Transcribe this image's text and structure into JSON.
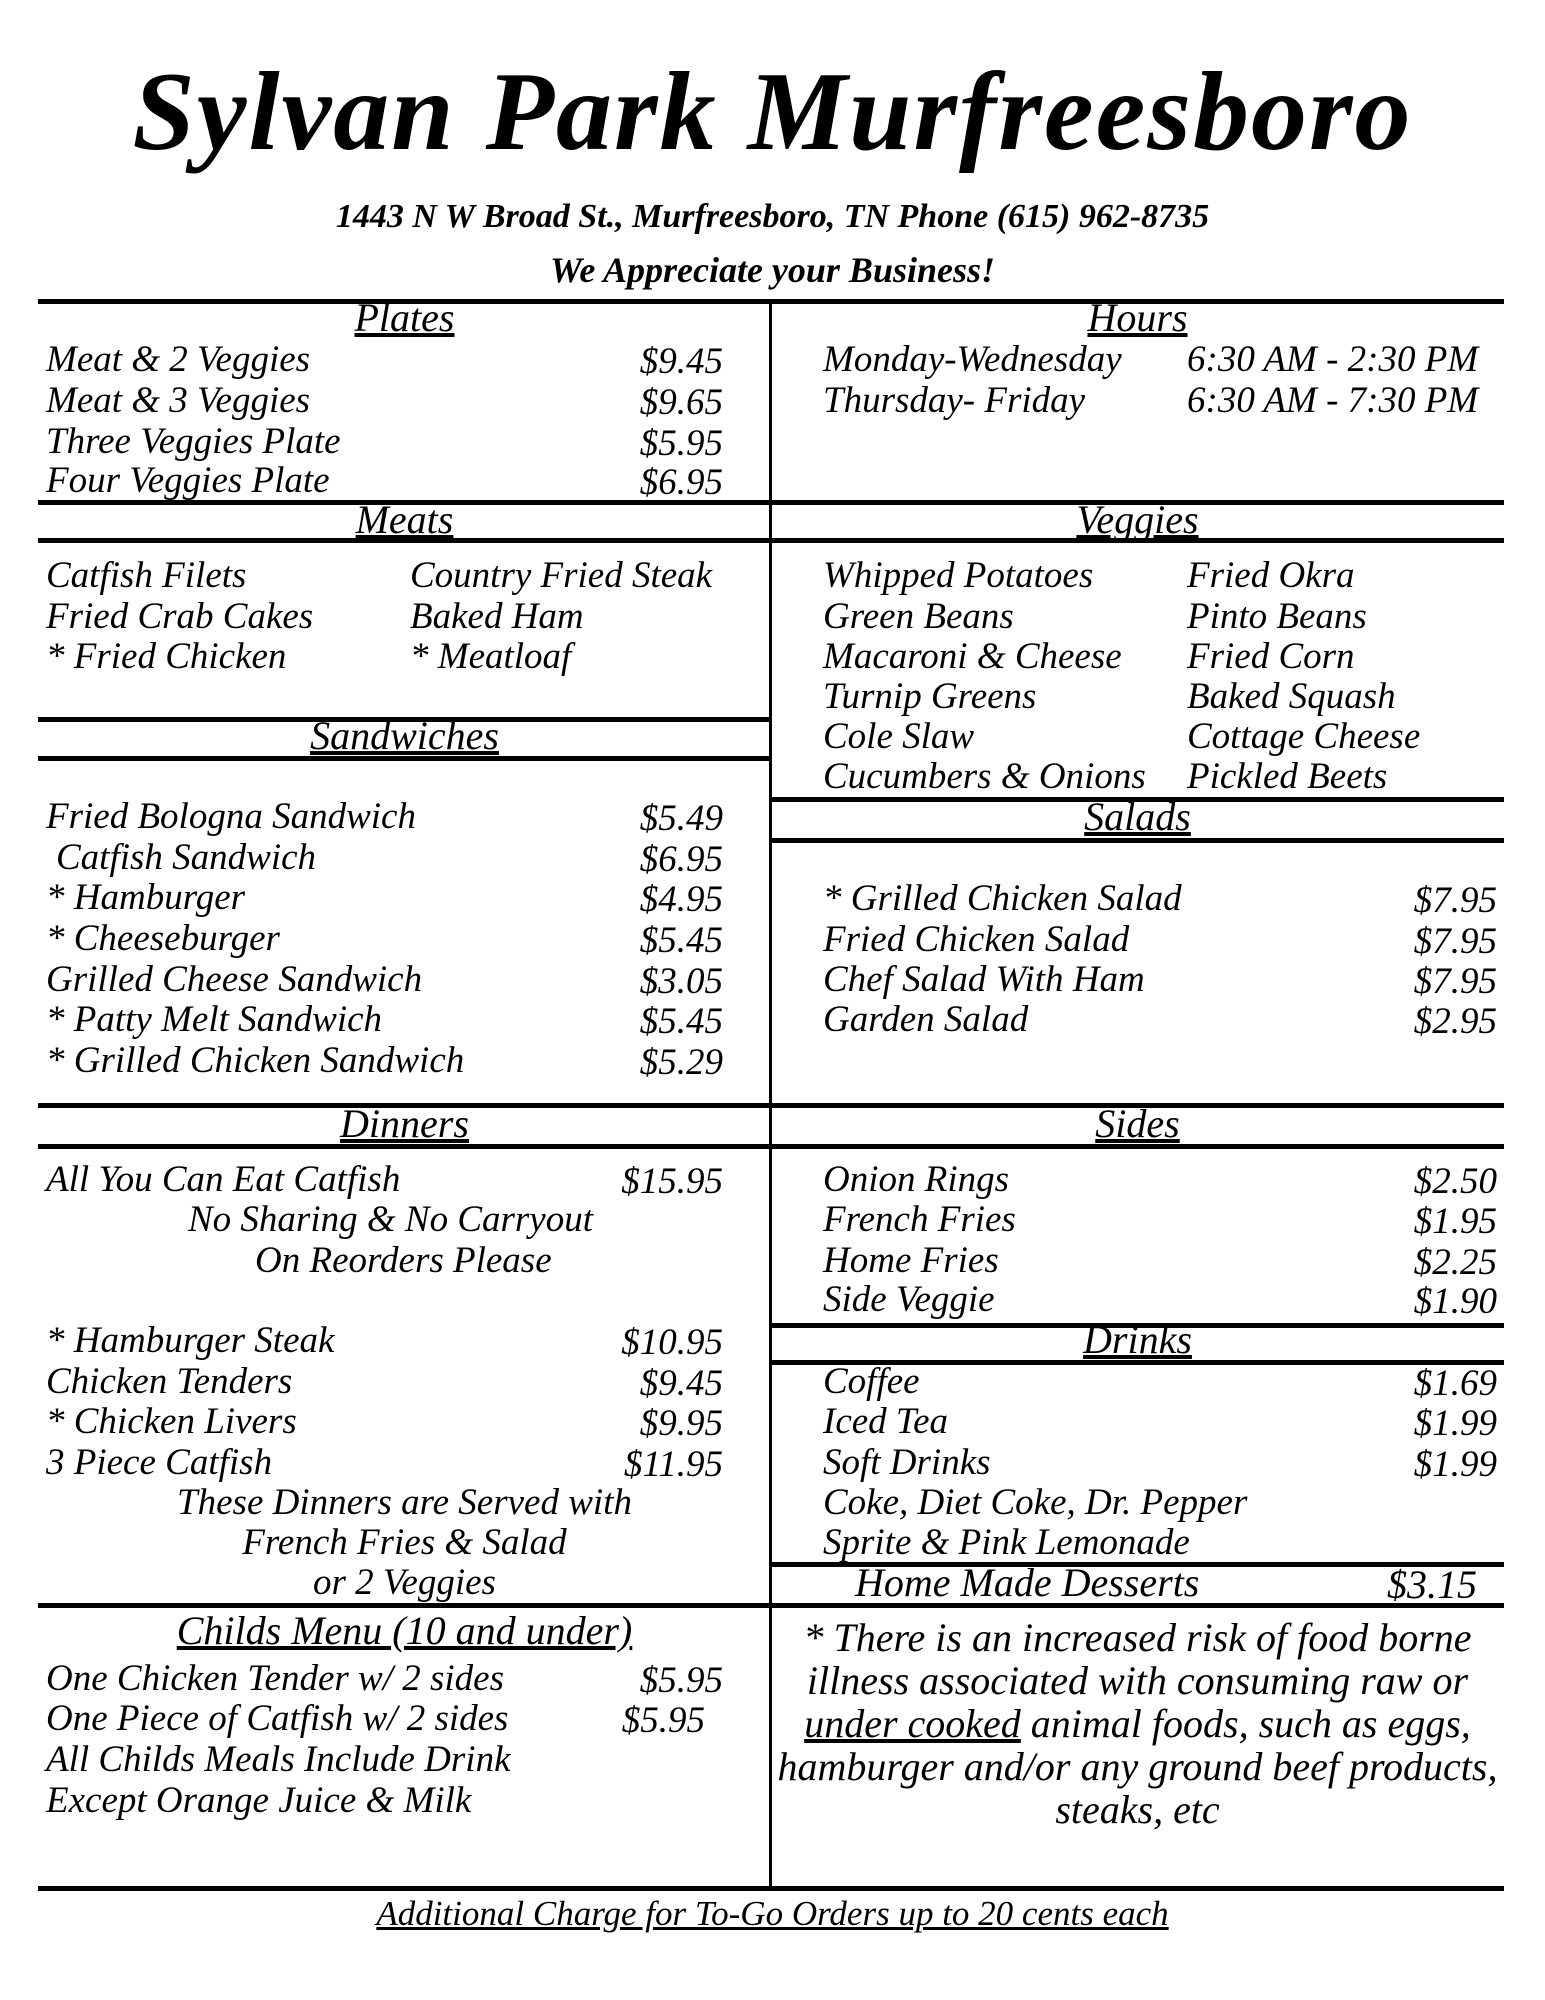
{
  "header": {
    "title": "Sylvan Park Murfreesboro",
    "address": "1443 N W Broad St., Murfreesboro, TN  Phone (615) 962-8735",
    "tagline": "We Appreciate your Business!"
  },
  "plates": {
    "title": "Plates",
    "items": [
      {
        "name": "Meat & 2 Veggies",
        "price": "$9.45"
      },
      {
        "name": "Meat & 3 Veggies",
        "price": "$9.65"
      },
      {
        "name": "Three Veggies Plate",
        "price": "$5.95"
      },
      {
        "name": "Four Veggies Plate",
        "price": "$6.95"
      }
    ]
  },
  "hours": {
    "title": "Hours",
    "rows": [
      {
        "days": "Monday-Wednesday",
        "time": "6:30 AM - 2:30 PM"
      },
      {
        "days": "Thursday- Friday",
        "time": "6:30 AM - 7:30 PM"
      }
    ]
  },
  "meats": {
    "title": "Meats",
    "col1": [
      "Catfish Filets",
      "Fried Crab Cakes",
      "* Fried Chicken"
    ],
    "col2": [
      "Country Fried Steak",
      "Baked Ham",
      "* Meatloaf"
    ]
  },
  "veggies": {
    "title": "Veggies",
    "col1": [
      "Whipped Potatoes",
      "Green Beans",
      "Macaroni & Cheese",
      "Turnip Greens",
      "Cole Slaw",
      "Cucumbers & Onions"
    ],
    "col2": [
      "Fried Okra",
      "Pinto Beans",
      "Fried Corn",
      "Baked Squash",
      "Cottage Cheese",
      "Pickled Beets"
    ]
  },
  "sandwiches": {
    "title": "Sandwiches",
    "items": [
      {
        "name": "Fried Bologna Sandwich",
        "price": "$5.49"
      },
      {
        "name": " Catfish Sandwich",
        "price": "$6.95"
      },
      {
        "name": "* Hamburger",
        "price": "$4.95"
      },
      {
        "name": "* Cheeseburger",
        "price": "$5.45"
      },
      {
        "name": "Grilled Cheese Sandwich",
        "price": "$3.05"
      },
      {
        "name": "* Patty Melt Sandwich",
        "price": "$5.45"
      },
      {
        "name": "* Grilled Chicken Sandwich",
        "price": "$5.29"
      }
    ]
  },
  "salads": {
    "title": "Salads",
    "items": [
      {
        "name": "* Grilled Chicken Salad",
        "price": "$7.95"
      },
      {
        "name": "Fried Chicken Salad",
        "price": "$7.95"
      },
      {
        "name": "Chef Salad With Ham",
        "price": "$7.95"
      },
      {
        "name": "Garden Salad",
        "price": "$2.95"
      }
    ]
  },
  "dinners": {
    "title": "Dinners",
    "catfish": {
      "name": "All You Can Eat Catfish",
      "price": "$15.95"
    },
    "catfish_notes": [
      "No Sharing & No Carryout",
      "On Reorders Please"
    ],
    "items": [
      {
        "name": "* Hamburger Steak",
        "price": "$10.95"
      },
      {
        "name": "Chicken Tenders",
        "price": "$9.45"
      },
      {
        "name": "* Chicken Livers",
        "price": "$9.95"
      },
      {
        "name": "3 Piece Catfish",
        "price": "$11.95"
      }
    ],
    "served_with": [
      "These Dinners are Served with",
      "French Fries & Salad",
      "or 2 Veggies"
    ]
  },
  "sides": {
    "title": "Sides",
    "items": [
      {
        "name": "Onion Rings",
        "price": "$2.50"
      },
      {
        "name": "French Fries",
        "price": "$1.95"
      },
      {
        "name": "Home Fries",
        "price": "$2.25"
      },
      {
        "name": "Side Veggie",
        "price": "$1.90"
      }
    ]
  },
  "drinks": {
    "title": "Drinks",
    "items": [
      {
        "name": "Coffee",
        "price": "$1.69"
      },
      {
        "name": "Iced Tea",
        "price": "$1.99"
      },
      {
        "name": "Soft Drinks",
        "price": "$1.99"
      }
    ],
    "notes": [
      "Coke, Diet Coke, Dr. Pepper",
      "Sprite & Pink Lemonade"
    ]
  },
  "desserts": {
    "name": "Home Made Desserts",
    "price": "$3.15"
  },
  "childs_menu": {
    "title": "Childs Menu (10 and under)",
    "items": [
      {
        "name": "One Chicken Tender w/ 2 sides",
        "price": "$5.95"
      },
      {
        "name": "One Piece of Catfish  w/ 2 sides",
        "price": "$5.95"
      }
    ],
    "notes": [
      "All Childs Meals Include Drink",
      "Except Orange Juice & Milk"
    ]
  },
  "warning": {
    "before": "* There is an increased risk of food borne illness associated with consuming raw or ",
    "underlined": "under cooked",
    "after": " animal foods, such as eggs, hamburger and/or any ground beef products, steaks, etc"
  },
  "footer": "Additional Charge for To-Go Orders up to 20 cents each"
}
